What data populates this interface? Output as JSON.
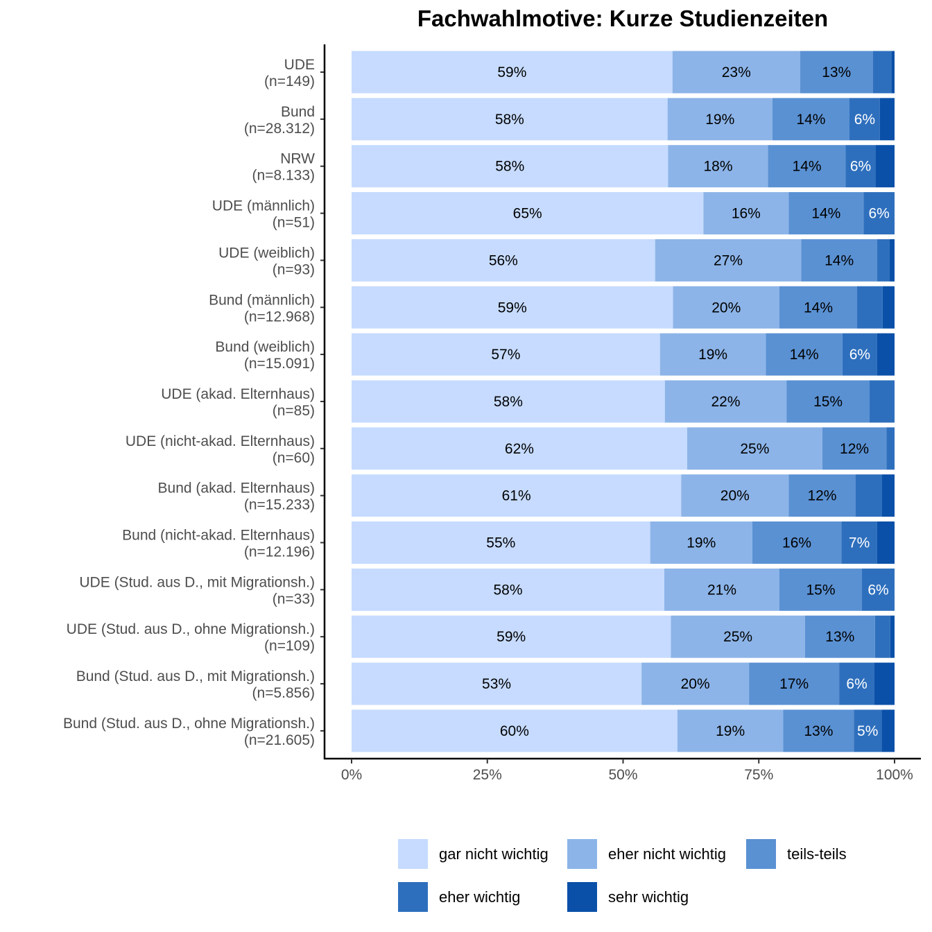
{
  "chart_data": {
    "type": "bar",
    "orientation": "horizontal",
    "stacked": true,
    "title": "Fachwahlmotive: Kurze Studienzeiten",
    "xlabel": "",
    "ylabel": "",
    "xlim": [
      0,
      100
    ],
    "x_ticks": [
      "0%",
      "25%",
      "50%",
      "75%",
      "100%"
    ],
    "grid": false,
    "legend_position": "bottom",
    "categories": [
      [
        "UDE",
        "(n=149)"
      ],
      [
        "Bund",
        "(n=28.312)"
      ],
      [
        "NRW",
        "(n=8.133)"
      ],
      [
        "UDE (männlich)",
        "(n=51)"
      ],
      [
        "UDE (weiblich)",
        "(n=93)"
      ],
      [
        "Bund (männlich)",
        "(n=12.968)"
      ],
      [
        "Bund (weiblich)",
        "(n=15.091)"
      ],
      [
        "UDE (akad. Elternhaus)",
        "(n=85)"
      ],
      [
        "UDE (nicht-akad. Elternhaus)",
        "(n=60)"
      ],
      [
        "Bund (akad. Elternhaus)",
        "(n=15.233)"
      ],
      [
        "Bund (nicht-akad. Elternhaus)",
        "(n=12.196)"
      ],
      [
        "UDE (Stud. aus D., mit Migrationsh.)",
        "(n=33)"
      ],
      [
        "UDE (Stud. aus D., ohne Migrationsh.)",
        "(n=109)"
      ],
      [
        "Bund (Stud. aus D., mit Migrationsh.)",
        "(n=5.856)"
      ],
      [
        "Bund (Stud. aus D., ohne Migrationsh.)",
        "(n=21.605)"
      ]
    ],
    "series": [
      {
        "name": "gar nicht wichtig",
        "color": "#c6dbff",
        "label_color": "#000000",
        "values": [
          59.1,
          58.2,
          58.3,
          64.8,
          55.9,
          59.2,
          56.8,
          57.7,
          61.8,
          60.7,
          55.0,
          57.6,
          58.8,
          53.4,
          60.0
        ]
      },
      {
        "name": "eher nicht wichtig",
        "color": "#8cb4e8",
        "label_color": "#000000",
        "values": [
          23.5,
          19.3,
          18.4,
          15.7,
          26.9,
          19.6,
          19.5,
          22.4,
          24.9,
          19.8,
          18.8,
          21.2,
          24.7,
          19.8,
          19.5
        ]
      },
      {
        "name": "teils-teils",
        "color": "#5a91d3",
        "label_color": "#000000",
        "values": [
          13.4,
          14.2,
          14.3,
          13.8,
          14.0,
          14.3,
          14.1,
          15.3,
          11.8,
          12.3,
          16.4,
          15.2,
          12.9,
          16.6,
          13.0
        ]
      },
      {
        "name": "eher wichtig",
        "color": "#2e6fbd",
        "label_color": "#ffffff",
        "values": [
          3.4,
          5.6,
          5.5,
          5.7,
          2.3,
          4.7,
          6.4,
          4.6,
          1.5,
          4.9,
          6.6,
          6.0,
          2.8,
          6.5,
          5.1
        ]
      },
      {
        "name": "sehr wichtig",
        "color": "#0a50a8",
        "label_color": "#ffffff",
        "values": [
          0.6,
          2.7,
          3.5,
          0.0,
          0.9,
          2.2,
          3.2,
          0.0,
          0.0,
          2.3,
          3.2,
          0.0,
          0.8,
          3.7,
          2.4
        ]
      }
    ],
    "data_labels": [
      [
        "59%",
        "23%",
        "13%",
        "",
        ""
      ],
      [
        "58%",
        "19%",
        "14%",
        "6%",
        ""
      ],
      [
        "58%",
        "18%",
        "14%",
        "6%",
        ""
      ],
      [
        "65%",
        "16%",
        "14%",
        "6%",
        ""
      ],
      [
        "56%",
        "27%",
        "14%",
        "",
        ""
      ],
      [
        "59%",
        "20%",
        "14%",
        "",
        ""
      ],
      [
        "57%",
        "19%",
        "14%",
        "6%",
        ""
      ],
      [
        "58%",
        "22%",
        "15%",
        "",
        ""
      ],
      [
        "62%",
        "25%",
        "12%",
        "",
        ""
      ],
      [
        "61%",
        "20%",
        "12%",
        "",
        ""
      ],
      [
        "55%",
        "19%",
        "16%",
        "7%",
        ""
      ],
      [
        "58%",
        "21%",
        "15%",
        "6%",
        ""
      ],
      [
        "59%",
        "25%",
        "13%",
        "",
        ""
      ],
      [
        "53%",
        "20%",
        "17%",
        "6%",
        ""
      ],
      [
        "60%",
        "19%",
        "13%",
        "5%",
        ""
      ]
    ]
  }
}
